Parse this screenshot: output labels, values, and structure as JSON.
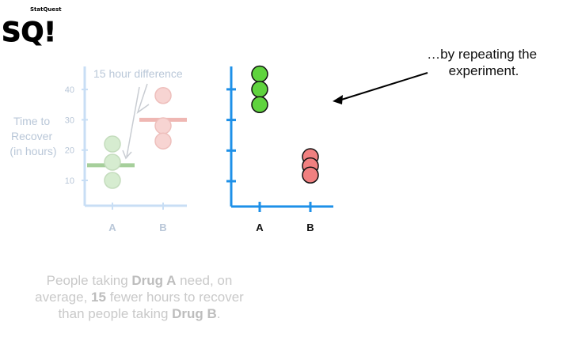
{
  "logo": {
    "main": "SQ!",
    "small": "StatQuest"
  },
  "old_plot": {
    "ylabel_lines": [
      "Time to",
      "Recover",
      "(in hours)"
    ],
    "yticks": [
      10,
      20,
      30,
      40
    ],
    "categories": [
      "A",
      "B"
    ],
    "annotation": "15 hour difference",
    "points": {
      "A": [
        22,
        16,
        10
      ],
      "B": [
        38,
        28,
        23
      ]
    },
    "means": {
      "A": 15,
      "B": 30
    }
  },
  "new_plot": {
    "categories": [
      "A",
      "B"
    ],
    "points": {
      "A": [
        45,
        40,
        35
      ],
      "B": [
        18,
        15,
        12
      ]
    }
  },
  "note": {
    "line1": "…by repeating the",
    "line2": "experiment."
  },
  "conclusion": {
    "t1": "People taking ",
    "b1": "Drug A",
    "t2": " need, on average, ",
    "b2": "15",
    "t3": " fewer hours to recover than people taking ",
    "b3": "Drug B",
    "t4": "."
  },
  "colors": {
    "axis_blue": "#1e90e8",
    "faded_axis": "#c8def5",
    "green": "#5fd33e",
    "red": "#f08080",
    "faded_green": "#d6ecd0",
    "faded_red": "#f7d4d2",
    "mean_green": "#a6cf9b",
    "mean_red": "#efb7b3"
  }
}
